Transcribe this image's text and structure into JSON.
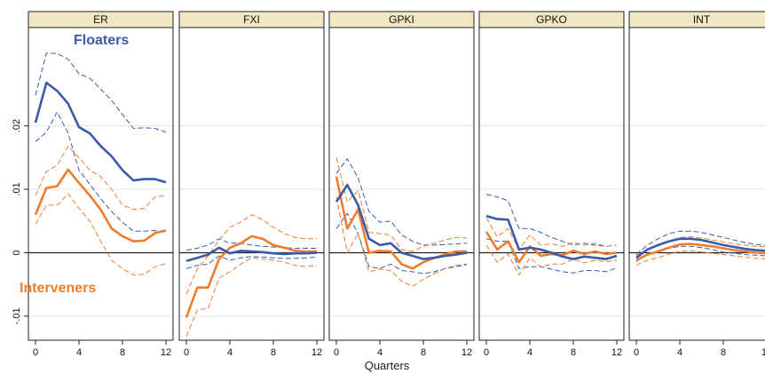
{
  "chart_data": {
    "type": "line",
    "xlabel": "Quarters",
    "x": [
      0,
      1,
      2,
      3,
      4,
      5,
      6,
      7,
      8,
      9,
      10,
      11,
      12
    ],
    "x_ticks": [
      0,
      4,
      8,
      12
    ],
    "x_tick_labels": [
      "0",
      "4",
      "8",
      "12"
    ],
    "ylim": [
      -0.0138,
      0.0355
    ],
    "y_ticks": [
      -0.01,
      0,
      0.01,
      0.02
    ],
    "y_tick_labels": [
      "-.01",
      "0",
      ".01",
      ".02"
    ],
    "grid": true,
    "annotations": [
      {
        "text": "Floaters",
        "series": "Floaters",
        "color": "#3a5ba8"
      },
      {
        "text": "Interveners",
        "series": "Interveners",
        "color": "#f07c2e"
      }
    ],
    "colors": {
      "floaters": "#3a5ba8",
      "interveners": "#f07c2e",
      "panel_header": "#f1e8c3"
    },
    "panels": [
      {
        "title": "ER",
        "series": [
          {
            "name": "Floaters",
            "role": "mean",
            "values": [
              0.0205,
              0.0268,
              0.0255,
              0.0235,
              0.0198,
              0.0188,
              0.0168,
              0.0152,
              0.013,
              0.0114,
              0.0116,
              0.0116,
              0.0111
            ]
          },
          {
            "name": "Floaters",
            "role": "upper",
            "values": [
              0.0248,
              0.0315,
              0.0314,
              0.0305,
              0.0282,
              0.0275,
              0.0258,
              0.024,
              0.0218,
              0.0196,
              0.0197,
              0.0196,
              0.019
            ]
          },
          {
            "name": "Floaters",
            "role": "lower",
            "values": [
              0.0175,
              0.019,
              0.0222,
              0.0188,
              0.013,
              0.0108,
              0.0085,
              0.0065,
              0.0048,
              0.0034,
              0.0034,
              0.0035,
              0.0032
            ]
          },
          {
            "name": "Interveners",
            "role": "mean",
            "values": [
              0.006,
              0.0102,
              0.0105,
              0.0131,
              0.011,
              0.009,
              0.0068,
              0.0038,
              0.0026,
              0.0018,
              0.0019,
              0.0031,
              0.0035
            ]
          },
          {
            "name": "Interveners",
            "role": "upper",
            "values": [
              0.009,
              0.0128,
              0.0138,
              0.0168,
              0.015,
              0.013,
              0.012,
              0.01,
              0.0075,
              0.0068,
              0.007,
              0.0088,
              0.009
            ]
          },
          {
            "name": "Interveners",
            "role": "lower",
            "values": [
              0.0045,
              0.0075,
              0.0075,
              0.0093,
              0.007,
              0.005,
              0.0018,
              -0.0012,
              -0.0025,
              -0.0035,
              -0.0034,
              -0.0022,
              -0.0017
            ]
          }
        ]
      },
      {
        "title": "FXI",
        "series": [
          {
            "name": "Floaters",
            "role": "mean",
            "values": [
              -0.0013,
              -0.0008,
              -0.0003,
              0.0008,
              -0.0001,
              0.0003,
              0.0002,
              0.0001,
              -0.0001,
              -0.0002,
              -0.0001,
              -0.0001,
              0.0
            ]
          },
          {
            "name": "Floaters",
            "role": "upper",
            "values": [
              0.0004,
              0.0007,
              0.0012,
              0.0022,
              0.0015,
              0.0015,
              0.0012,
              0.001,
              0.0009,
              0.0008,
              0.0007,
              0.0007,
              0.0007
            ]
          },
          {
            "name": "Floaters",
            "role": "lower",
            "values": [
              -0.0025,
              -0.002,
              -0.0018,
              -0.0005,
              -0.0012,
              -0.0008,
              -0.0006,
              -0.0007,
              -0.0008,
              -0.0009,
              -0.0009,
              -0.0008,
              -0.0007
            ]
          },
          {
            "name": "Interveners",
            "role": "mean",
            "values": [
              -0.0102,
              -0.0055,
              -0.0055,
              -0.001,
              0.0008,
              0.0015,
              0.0026,
              0.0022,
              0.0012,
              0.0008,
              0.0003,
              0.0002,
              0.0002
            ]
          },
          {
            "name": "Interveners",
            "role": "upper",
            "values": [
              -0.0065,
              -0.0025,
              -0.0005,
              0.002,
              0.004,
              0.0048,
              0.006,
              0.0052,
              0.004,
              0.003,
              0.0024,
              0.0022,
              0.0022
            ]
          },
          {
            "name": "Interveners",
            "role": "lower",
            "values": [
              -0.0132,
              -0.009,
              -0.0088,
              -0.004,
              -0.003,
              -0.0018,
              -0.0008,
              -0.001,
              -0.0012,
              -0.0015,
              -0.002,
              -0.0022,
              -0.002
            ]
          }
        ]
      },
      {
        "title": "GPKI",
        "series": [
          {
            "name": "Floaters",
            "role": "mean",
            "values": [
              0.008,
              0.0107,
              0.0075,
              0.0022,
              0.0012,
              0.0015,
              0.0,
              -0.0005,
              -0.001,
              -0.0008,
              -0.0005,
              -0.0003,
              0.0
            ]
          },
          {
            "name": "Floaters",
            "role": "upper",
            "values": [
              0.0125,
              0.0148,
              0.0118,
              0.0065,
              0.0048,
              0.005,
              0.0028,
              0.0018,
              0.0012,
              0.0012,
              0.0013,
              0.0014,
              0.0015
            ]
          },
          {
            "name": "Floaters",
            "role": "lower",
            "values": [
              0.0038,
              0.0062,
              0.003,
              -0.0022,
              -0.0025,
              -0.0018,
              -0.0028,
              -0.003,
              -0.0033,
              -0.003,
              -0.0025,
              -0.0022,
              -0.0019
            ]
          },
          {
            "name": "Interveners",
            "role": "mean",
            "values": [
              0.012,
              0.0038,
              0.0068,
              0.0,
              0.0003,
              0.0002,
              -0.0018,
              -0.0025,
              -0.0015,
              -0.0008,
              -0.0003,
              0.0002,
              0.0002
            ]
          },
          {
            "name": "Interveners",
            "role": "upper",
            "values": [
              0.015,
              0.008,
              0.0098,
              0.0032,
              0.003,
              0.0028,
              0.0005,
              0.0002,
              0.001,
              0.0015,
              0.002,
              0.0024,
              0.0023
            ]
          },
          {
            "name": "Interveners",
            "role": "lower",
            "values": [
              0.0088,
              0.0,
              0.003,
              -0.003,
              -0.0026,
              -0.0028,
              -0.0045,
              -0.0053,
              -0.0042,
              -0.0033,
              -0.0025,
              -0.002,
              -0.0018
            ]
          }
        ]
      },
      {
        "title": "GPKO",
        "series": [
          {
            "name": "Floaters",
            "role": "mean",
            "values": [
              0.0058,
              0.0053,
              0.0052,
              0.0005,
              0.0008,
              0.0005,
              0.0,
              -0.0006,
              -0.001,
              -0.0006,
              -0.0008,
              -0.001,
              -0.0005
            ]
          },
          {
            "name": "Floaters",
            "role": "upper",
            "values": [
              0.0092,
              0.0088,
              0.0082,
              0.0038,
              0.0038,
              0.0032,
              0.0024,
              0.0018,
              0.0012,
              0.0015,
              0.0012,
              0.001,
              0.0012
            ]
          },
          {
            "name": "Floaters",
            "role": "lower",
            "values": [
              0.0022,
              0.0018,
              0.0018,
              -0.0025,
              -0.0022,
              -0.0022,
              -0.0026,
              -0.003,
              -0.0032,
              -0.0028,
              -0.0028,
              -0.003,
              -0.0024
            ]
          },
          {
            "name": "Interveners",
            "role": "mean",
            "values": [
              0.0033,
              0.0005,
              0.0018,
              -0.0015,
              0.001,
              -0.0005,
              -0.0002,
              -0.0004,
              0.0003,
              -0.0002,
              0.0002,
              -0.0002,
              0.0
            ]
          },
          {
            "name": "Interveners",
            "role": "upper",
            "values": [
              0.0055,
              0.0025,
              0.0038,
              0.0005,
              0.0028,
              0.0012,
              0.0014,
              0.001,
              0.0016,
              0.0012,
              0.0015,
              0.001,
              0.0012
            ]
          },
          {
            "name": "Interveners",
            "role": "lower",
            "values": [
              0.0012,
              -0.0015,
              -0.0002,
              -0.0035,
              -0.0008,
              -0.0022,
              -0.0018,
              -0.0018,
              -0.001,
              -0.0016,
              -0.0012,
              -0.0014,
              -0.0012
            ]
          }
        ]
      },
      {
        "title": "INT",
        "series": [
          {
            "name": "Floaters",
            "role": "mean",
            "values": [
              -0.0008,
              0.0005,
              0.0012,
              0.0018,
              0.0022,
              0.0022,
              0.002,
              0.0016,
              0.0012,
              0.0009,
              0.0006,
              0.0004,
              0.0003
            ]
          },
          {
            "name": "Floaters",
            "role": "upper",
            "values": [
              -0.0003,
              0.0012,
              0.0022,
              0.003,
              0.0034,
              0.0034,
              0.0032,
              0.0028,
              0.0024,
              0.002,
              0.0016,
              0.0013,
              0.0011
            ]
          },
          {
            "name": "Floaters",
            "role": "lower",
            "values": [
              -0.0014,
              -0.0002,
              0.0003,
              0.0007,
              0.001,
              0.001,
              0.0008,
              0.0005,
              0.0001,
              -0.0001,
              -0.0003,
              -0.0004,
              -0.0005
            ]
          },
          {
            "name": "Interveners",
            "role": "mean",
            "values": [
              -0.0012,
              -0.0003,
              0.0002,
              0.0008,
              0.0013,
              0.0014,
              0.0012,
              0.001,
              0.0007,
              0.0004,
              0.0002,
              0.0,
              -0.0001
            ]
          },
          {
            "name": "Interveners",
            "role": "upper",
            "values": [
              -0.0005,
              0.0005,
              0.0012,
              0.0018,
              0.0024,
              0.0025,
              0.0023,
              0.002,
              0.0017,
              0.0014,
              0.0012,
              0.001,
              0.0009
            ]
          },
          {
            "name": "Interveners",
            "role": "lower",
            "values": [
              -0.002,
              -0.0012,
              -0.0008,
              -0.0002,
              0.0002,
              0.0003,
              0.0001,
              -0.0001,
              -0.0003,
              -0.0005,
              -0.0007,
              -0.0009,
              -0.001
            ]
          }
        ]
      }
    ]
  }
}
